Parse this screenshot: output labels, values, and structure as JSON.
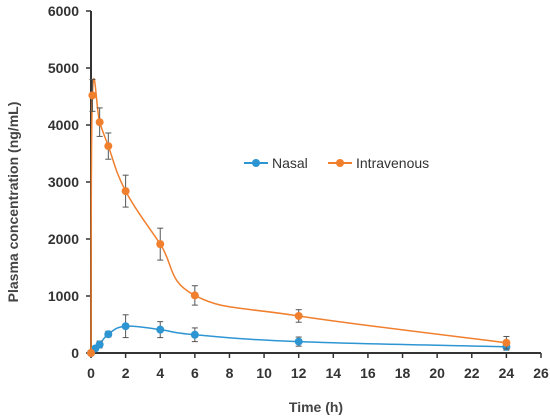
{
  "chart_data": {
    "type": "line",
    "title": "",
    "xlabel": "Time (h)",
    "ylabel": "Plasma concentration (ng/mL)",
    "xlim": [
      0,
      26
    ],
    "ylim": [
      0,
      6000
    ],
    "x_ticks": [
      0,
      2,
      4,
      6,
      8,
      10,
      12,
      14,
      16,
      18,
      20,
      22,
      24,
      26
    ],
    "y_ticks": [
      0,
      1000,
      2000,
      3000,
      4000,
      5000,
      6000
    ],
    "grid": false,
    "legend_position": "center-right",
    "series": [
      {
        "name": "Nasal",
        "color": "#2E95D3",
        "x": [
          0,
          0.25,
          0.5,
          1,
          2,
          4,
          6,
          12,
          24
        ],
        "y": [
          0,
          80,
          150,
          330,
          470,
          410,
          320,
          200,
          110
        ],
        "error": [
          0,
          40,
          60,
          50,
          200,
          140,
          120,
          80,
          60
        ]
      },
      {
        "name": "Intravenous",
        "color": "#F07F2E",
        "x": [
          0,
          0.083,
          0.5,
          1,
          2,
          4,
          6,
          12,
          24
        ],
        "y": [
          0,
          4520,
          4050,
          3630,
          2840,
          1910,
          1010,
          650,
          180
        ],
        "error": [
          0,
          280,
          250,
          230,
          280,
          280,
          170,
          110,
          110
        ]
      }
    ]
  }
}
